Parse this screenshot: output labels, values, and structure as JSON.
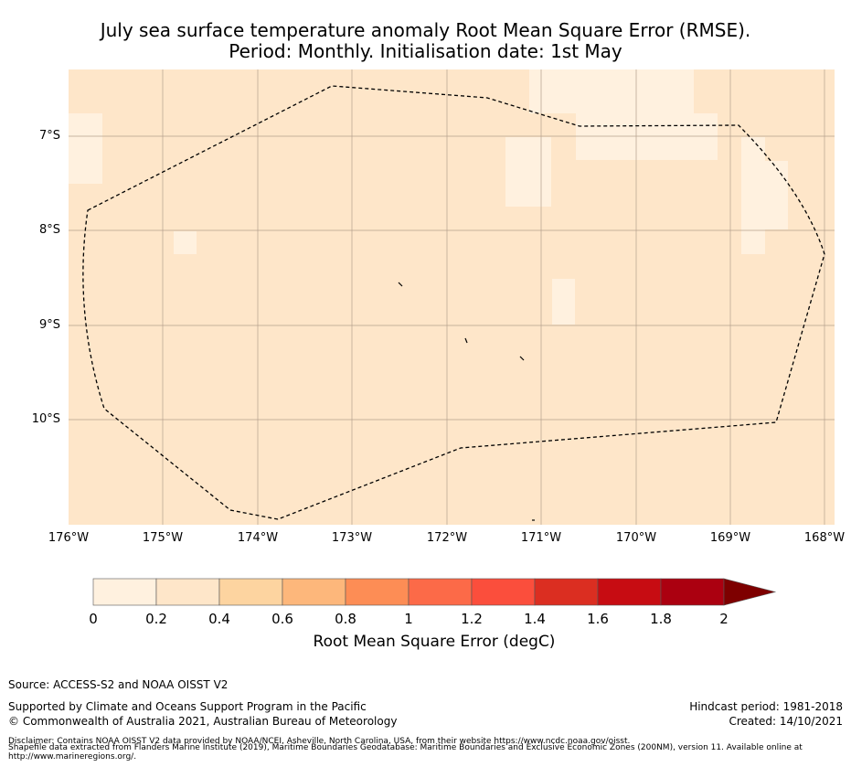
{
  "title": {
    "line1": "July sea surface temperature anomaly Root Mean Square Error (RMSE).",
    "line2": "Period: Monthly. Initialisation date: 1st May"
  },
  "map": {
    "lat_labels": [
      "7°S",
      "8°S",
      "9°S",
      "10°S"
    ],
    "lon_labels": [
      "176°W",
      "175°W",
      "174°W",
      "173°W",
      "172°W",
      "171°W",
      "170°W",
      "169°W",
      "168°W"
    ],
    "colors": {
      "base": "#fee6c9",
      "light": "#fff1df",
      "border": "#000000"
    }
  },
  "colorbar": {
    "title": "Root Mean Square Error (degC)",
    "ticks": [
      "0",
      "0.2",
      "0.4",
      "0.6",
      "0.8",
      "1",
      "1.2",
      "1.4",
      "1.6",
      "1.8",
      "2"
    ],
    "colors": [
      "#fff1df",
      "#fee6c9",
      "#fdd4a0",
      "#fdb77b",
      "#fd8d55",
      "#fc6a48",
      "#fb4e3c",
      "#db2e21",
      "#c70c12",
      "#ab0010",
      "#7e0000"
    ]
  },
  "footer": {
    "source": "Source: ACCESS-S2 and NOAA OISST V2",
    "supported": "Supported by Climate and Oceans Support Program in the Pacific",
    "copyright": "© Commonwealth of Australia 2021, Australian Bureau of Meteorology",
    "hindcast": "Hindcast period: 1981-2018",
    "created": "Created: 14/10/2021",
    "disclaimer1": "Disclaimer: Contains NOAA OISST V2 data provided by NOAA/NCEI, Asheville, North Carolina, USA, from their website https://www.ncdc.noaa.gov/oisst.",
    "disclaimer2": "Shapefile data extracted from Flanders Marine Institute (2019), Maritime Boundaries Geodatabase: Maritime Boundaries and Exclusive Economic Zones (200NM), version 11. Available online at",
    "disclaimer3": "http://www.marineregions.org/."
  }
}
